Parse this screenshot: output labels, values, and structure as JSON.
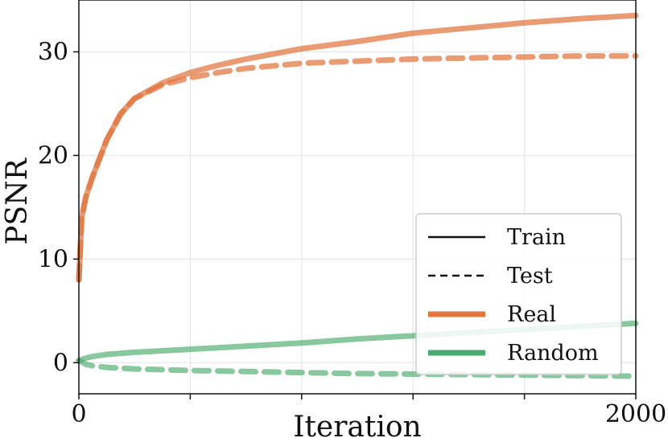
{
  "chart_data": {
    "type": "line",
    "title": "",
    "xlabel": "Iteration",
    "ylabel": "PSNR",
    "xlim": [
      0,
      2000
    ],
    "ylim": [
      -3,
      35
    ],
    "x_ticks": [
      0,
      400,
      800,
      1200,
      1600,
      2000
    ],
    "x_tick_labels": [
      "0",
      "",
      "",
      "",
      "",
      "2000"
    ],
    "y_ticks": [
      0,
      10,
      20,
      30
    ],
    "y_tick_labels": [
      "0",
      "10",
      "20",
      "30"
    ],
    "grid": true,
    "legend_position": "lower-right",
    "legend": [
      {
        "label": "Train",
        "style": "solid",
        "color": "#111111"
      },
      {
        "label": "Test",
        "style": "dashed",
        "color": "#111111"
      },
      {
        "label": "Real",
        "style": "solid",
        "color": "#e0753d"
      },
      {
        "label": "Random",
        "style": "solid",
        "color": "#4aa96c"
      }
    ],
    "series": [
      {
        "name": "Real Train",
        "dataset": "Real",
        "split": "Train",
        "color": "#e0753d",
        "x": [
          0,
          10,
          25,
          50,
          100,
          150,
          200,
          300,
          400,
          500,
          600,
          800,
          1000,
          1200,
          1400,
          1600,
          1800,
          2000
        ],
        "values": [
          8,
          14,
          16,
          18,
          21.5,
          24,
          25.5,
          27,
          28,
          28.7,
          29.3,
          30.3,
          31,
          31.8,
          32.3,
          32.8,
          33.2,
          33.5
        ]
      },
      {
        "name": "Real Test",
        "dataset": "Real",
        "split": "Test",
        "color": "#e0753d",
        "x": [
          0,
          10,
          25,
          50,
          100,
          150,
          200,
          300,
          400,
          500,
          600,
          800,
          1000,
          1200,
          1400,
          1600,
          1800,
          2000
        ],
        "values": [
          8,
          14,
          16,
          18,
          21.5,
          24,
          25.5,
          26.8,
          27.5,
          28,
          28.4,
          28.9,
          29.1,
          29.3,
          29.4,
          29.5,
          29.6,
          29.6
        ]
      },
      {
        "name": "Random Train",
        "dataset": "Random",
        "split": "Train",
        "color": "#4aa96c",
        "x": [
          0,
          25,
          50,
          100,
          200,
          400,
          600,
          800,
          1000,
          1200,
          1400,
          1600,
          1800,
          2000
        ],
        "values": [
          0.2,
          0.45,
          0.6,
          0.8,
          1.0,
          1.3,
          1.6,
          1.9,
          2.3,
          2.6,
          2.9,
          3.2,
          3.5,
          3.8
        ]
      },
      {
        "name": "Random Test",
        "dataset": "Random",
        "split": "Test",
        "color": "#4aa96c",
        "x": [
          0,
          25,
          50,
          100,
          200,
          400,
          600,
          800,
          1000,
          1200,
          1400,
          1600,
          1800,
          2000
        ],
        "values": [
          0.2,
          -0.15,
          -0.3,
          -0.45,
          -0.6,
          -0.75,
          -0.85,
          -0.95,
          -1.05,
          -1.1,
          -1.15,
          -1.2,
          -1.25,
          -1.3
        ]
      }
    ]
  }
}
